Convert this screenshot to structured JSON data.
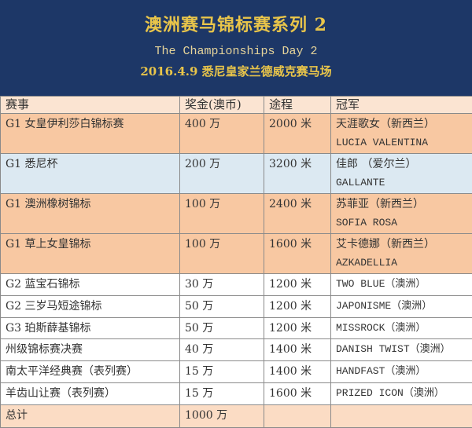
{
  "header": {
    "title": "澳洲赛马锦标赛系列 2",
    "subtitle": "The Championships Day 2",
    "date_venue": "2016.4.9 悉尼皇家兰德威克赛马场"
  },
  "columns": [
    "赛事",
    "奖金(澳币)",
    "途程",
    "冠军"
  ],
  "rows": [
    {
      "race": "G1 女皇伊利莎白锦标赛",
      "prize": "400 万",
      "distance": "2000 米",
      "winner": "天涯歌女（新西兰）",
      "winner_en": "LUCIA VALENTINA",
      "color": "#f8c8a2"
    },
    {
      "race": "G1 悉尼杯",
      "prize": "200 万",
      "distance": "3200 米",
      "winner": "佳郎 （爱尔兰）",
      "winner_en": "GALLANTE",
      "color": "#dce9f2"
    },
    {
      "race": "G1 澳洲橡树锦标",
      "prize": "100 万",
      "distance": "2400 米",
      "winner": "苏菲亚（新西兰）",
      "winner_en": "SOFIA ROSA",
      "color": "#f8c8a2"
    },
    {
      "race": "G1 草上女皇锦标",
      "prize": "100 万",
      "distance": "1600 米",
      "winner": "艾卡德娜（新西兰）",
      "winner_en": "AZKADELLIA",
      "color": "#f8c8a2"
    },
    {
      "race": "G2 蓝宝石锦标",
      "prize": "30 万",
      "distance": "1200 米",
      "winner": "TWO BLUE（澳洲）"
    },
    {
      "race": "G2 三岁马短途锦标",
      "prize": "50 万",
      "distance": "1200 米",
      "winner": "JAPONISME（澳洲）"
    },
    {
      "race": "G3 珀斯薛基锦标",
      "prize": "50 万",
      "distance": "1200 米",
      "winner": "MISSROCK（澳洲）"
    },
    {
      "race": "州级锦标赛决赛",
      "prize": "40 万",
      "distance": "1400 米",
      "winner": "DANISH TWIST（澳洲）"
    },
    {
      "race": "南太平洋经典赛（表列赛）",
      "prize": "15 万",
      "distance": "1400 米",
      "winner": "HANDFAST（澳洲）"
    },
    {
      "race": "羊齿山让赛（表列赛）",
      "prize": "15 万",
      "distance": "1600 米",
      "winner": "PRIZED ICON（澳洲）"
    }
  ],
  "total": {
    "label": "总计",
    "prize": "1000 万"
  },
  "colors": {
    "header_bg": "#1d3767",
    "title_gold": "#e9c54a",
    "orange_row": "#f8c8a2",
    "blue_row": "#dce9f2"
  }
}
